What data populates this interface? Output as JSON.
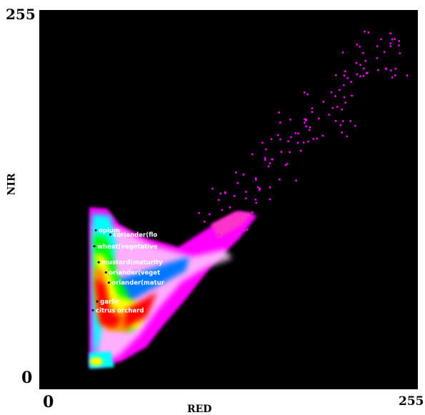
{
  "chart_data": {
    "type": "heatmap",
    "subtype": "2D scatter density (feature space)",
    "xlabel": "RED",
    "ylabel": "NIR",
    "xlim": [
      0,
      255
    ],
    "ylim": [
      0,
      255
    ],
    "x_ticks": [
      "0",
      "255"
    ],
    "y_ticks": [
      "0",
      "255"
    ],
    "grid": false,
    "background": "#000000",
    "colormap": [
      "#ff00ff",
      "#ff33cc",
      "#ff0000",
      "#ff8800",
      "#ffff00",
      "#00ff00",
      "#00ffff",
      "#0077ff",
      "#0000ff"
    ],
    "class_labels": [
      {
        "text": "opium",
        "x": 35,
        "y": 102
      },
      {
        "text": "coriander(flo",
        "x": 45,
        "y": 99
      },
      {
        "text": "wheat(vegetative",
        "x": 34,
        "y": 91
      },
      {
        "text": "mustard(maturity",
        "x": 37,
        "y": 80
      },
      {
        "text": "oriander(veget",
        "x": 42,
        "y": 73
      },
      {
        "text": "oriander(matur",
        "x": 44,
        "y": 66
      },
      {
        "text": "garlic",
        "x": 36,
        "y": 53
      },
      {
        "text": "citrus orchard",
        "x": 33,
        "y": 47
      }
    ]
  }
}
